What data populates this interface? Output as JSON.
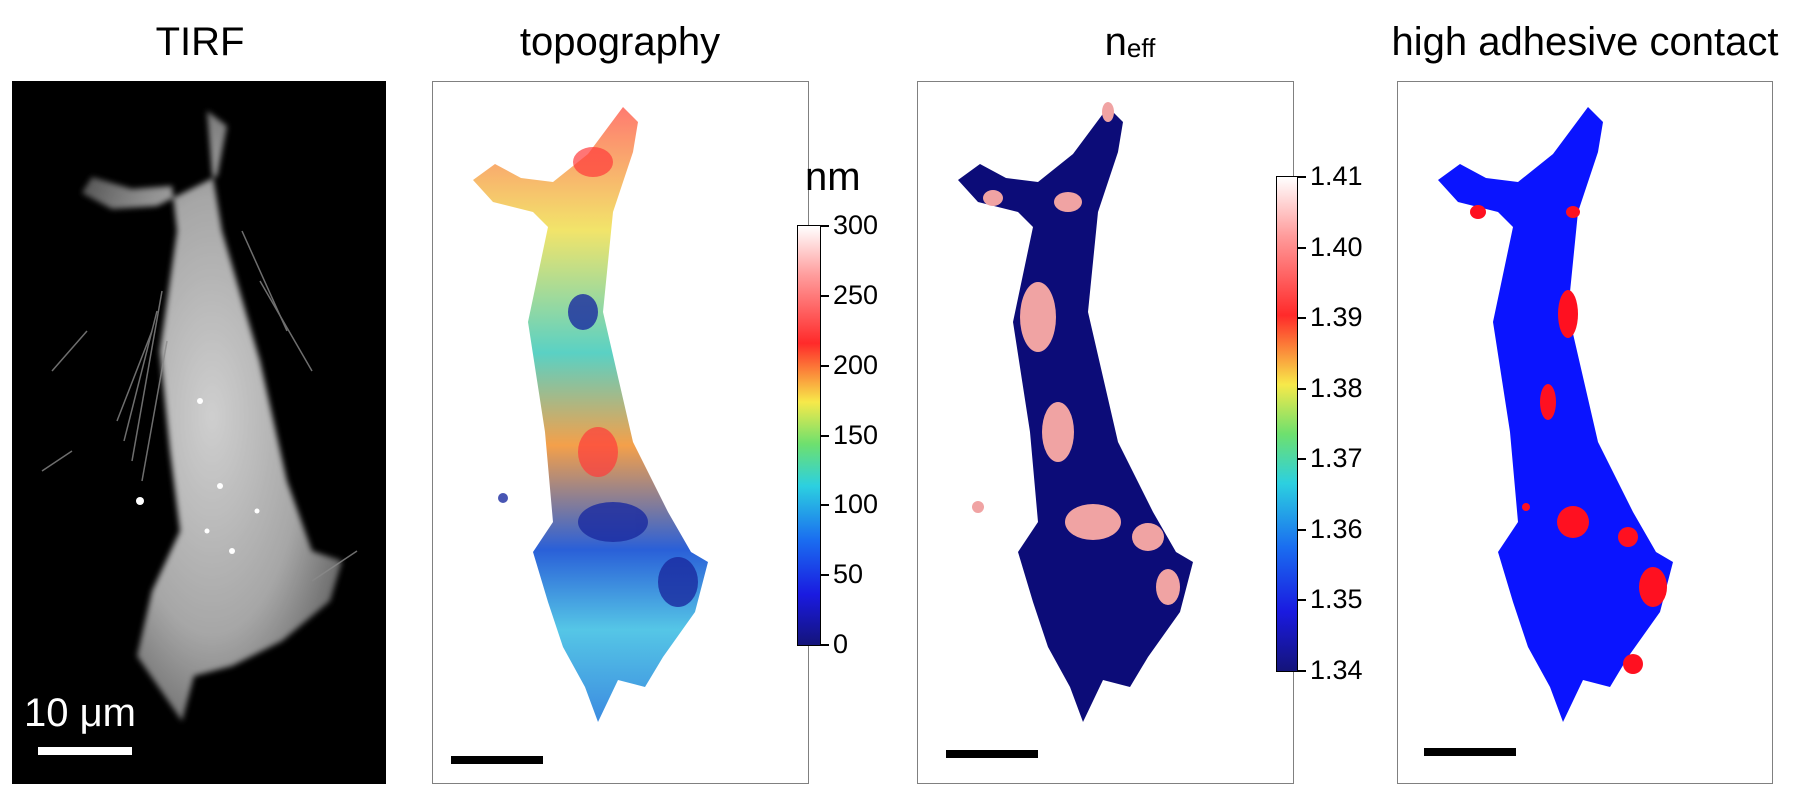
{
  "panels": [
    {
      "title": "TIRF",
      "scale_label": "10 μm"
    },
    {
      "title": "topography"
    },
    {
      "title_main": "n",
      "title_sub": "eff"
    },
    {
      "title": "high adhesive contact"
    }
  ],
  "topography_colorbar": {
    "unit": "nm",
    "ticks": [
      "300",
      "250",
      "200",
      "150",
      "100",
      "50",
      "0"
    ],
    "range": [
      0,
      300
    ]
  },
  "neff_colorbar": {
    "ticks": [
      "1.41",
      "1.40",
      "1.39",
      "1.38",
      "1.37",
      "1.36",
      "1.35",
      "1.34"
    ],
    "range": [
      1.34,
      1.41
    ]
  },
  "colors": {
    "cell_blue": "#0a14ff",
    "adhesion_red": "#ff1020",
    "neff_dark": "#0c0c78",
    "neff_pink": "#f0a3a3"
  }
}
